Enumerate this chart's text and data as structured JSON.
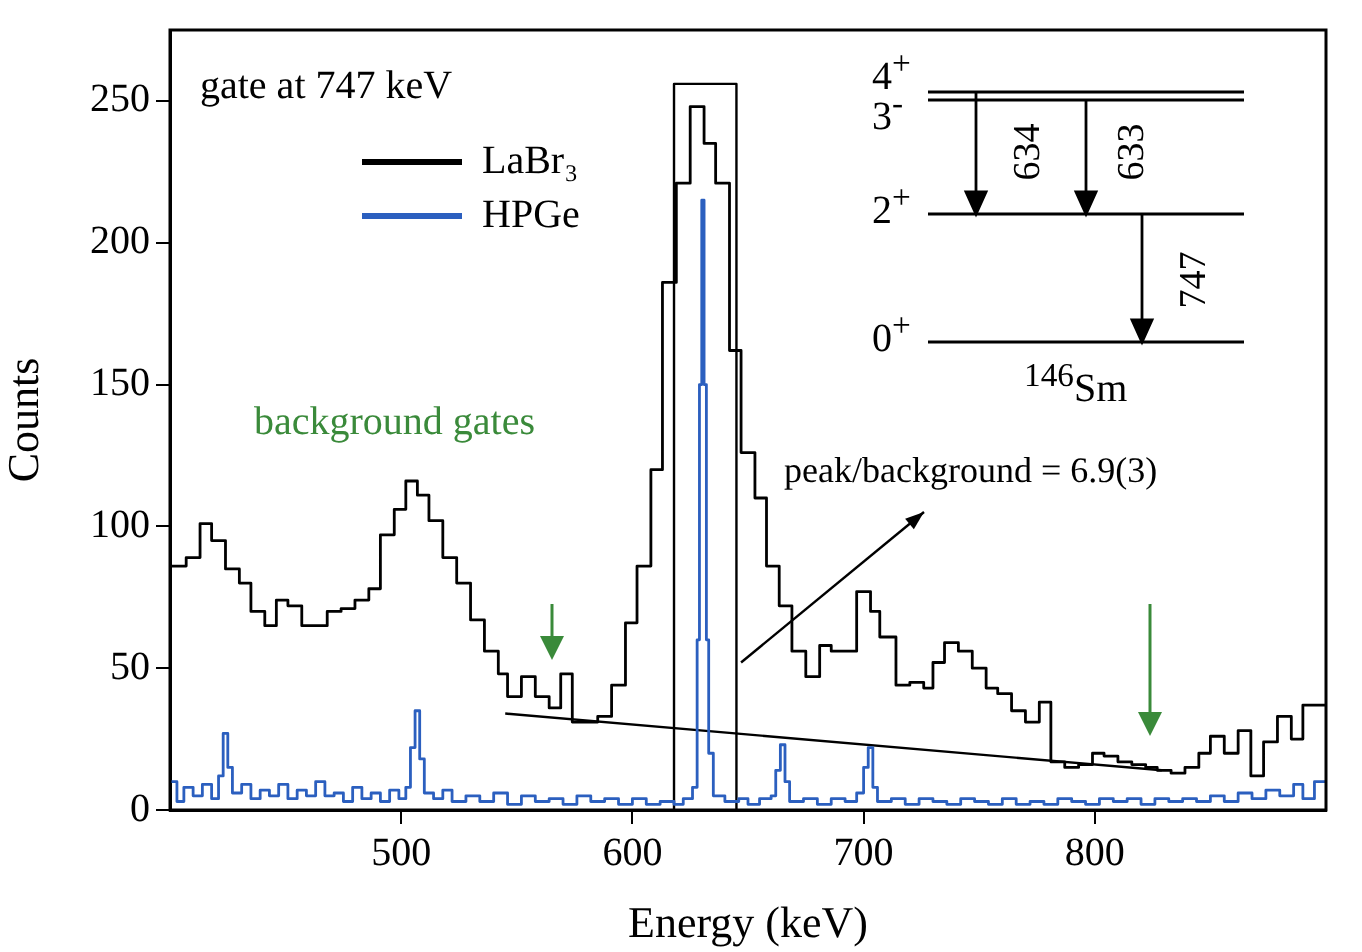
{
  "chart_data": {
    "type": "step",
    "xlabel": "Energy (keV)",
    "ylabel": "Counts",
    "xlim": [
      400,
      900
    ],
    "xticks": [
      500,
      600,
      700,
      800
    ],
    "ylim": [
      0,
      275
    ],
    "yticks": [
      0,
      50,
      100,
      150,
      200,
      250
    ],
    "legend": "top left",
    "grid": false,
    "annotations": [
      "gate at 747 keV",
      "background gates",
      {
        "text": "peak/background = 6.9(3)",
        "x": 647,
        "y": 52
      },
      "4$^{+}$",
      "3$^{-}$",
      "2$^{+}$",
      "0$^{+}$",
      "634",
      "633",
      "747",
      "$^{146}$Sm"
    ],
    "series": [
      {
        "name": "LaBr₃",
        "type": "step",
        "color": "#000000",
        "x": [
          400,
          407,
          413,
          418,
          424,
          430,
          435,
          441,
          446,
          451,
          457,
          468,
          474,
          480,
          486,
          491,
          497,
          502,
          507,
          512,
          518,
          524,
          530,
          536,
          542,
          546,
          552,
          558,
          564,
          569,
          574,
          585,
          591,
          597,
          602,
          608,
          613,
          619,
          625,
          631,
          636,
          642,
          647,
          653,
          658,
          663.5,
          669,
          675,
          681,
          686,
          697,
          703,
          707,
          714,
          720,
          726,
          730,
          735,
          741,
          747,
          753,
          758,
          764,
          770,
          776,
          781,
          787,
          793,
          799,
          804,
          810,
          816,
          822,
          827,
          833,
          839,
          845,
          850,
          856,
          862,
          867.5,
          873,
          879,
          885,
          890,
          900
        ],
        "values": [
          86,
          89,
          101,
          95,
          85,
          80,
          70,
          65,
          74,
          72,
          65,
          70,
          71,
          74,
          78,
          97,
          106,
          116,
          111,
          102,
          89,
          80,
          67,
          56,
          48,
          40,
          47,
          40,
          36,
          48,
          31,
          33,
          44,
          66,
          86,
          120,
          186,
          221,
          248,
          235,
          221,
          162,
          126,
          110,
          86,
          72,
          56,
          47,
          58,
          56,
          77,
          70,
          61,
          44,
          45,
          43,
          52,
          59,
          56,
          50,
          43,
          41,
          35,
          31,
          38,
          17,
          15,
          16,
          20,
          19,
          17,
          16,
          15,
          14,
          13,
          15,
          20,
          26,
          20,
          28,
          12,
          24,
          33,
          25,
          37,
          37
        ]
      },
      {
        "name": "HPGe",
        "type": "step",
        "color": "#2b5fbf",
        "x": [
          400,
          403,
          406,
          410,
          414,
          418,
          421,
          423,
          425,
          427,
          431,
          435,
          439,
          443,
          447,
          451,
          455,
          459,
          463,
          467,
          471,
          475,
          479,
          483,
          487,
          491,
          495,
          499,
          502,
          504,
          506,
          508,
          510,
          514,
          518,
          522,
          528,
          534,
          540,
          546,
          552,
          558,
          564,
          570,
          576,
          582,
          588,
          594,
          600,
          606,
          612,
          618,
          622,
          626,
          628,
          629,
          630,
          631,
          632,
          633,
          635,
          640,
          646,
          650,
          655,
          660,
          662,
          664,
          666,
          668,
          674,
          680,
          686,
          692,
          697,
          700,
          702,
          704,
          706,
          712,
          718,
          724,
          730,
          736,
          742,
          748,
          754,
          760,
          766,
          772,
          778,
          784,
          790,
          796,
          802,
          808,
          814,
          820,
          826,
          832,
          838,
          844,
          850,
          856,
          862,
          868,
          874,
          880,
          886,
          890,
          895,
          900
        ],
        "values": [
          10,
          3,
          8,
          5,
          9,
          4,
          12,
          27,
          15,
          6,
          9,
          4,
          7,
          5,
          9,
          4,
          7,
          5,
          10,
          5,
          6,
          3,
          8,
          4,
          6,
          3,
          7,
          4,
          8,
          22,
          35,
          18,
          6,
          4,
          7,
          3,
          5,
          3,
          6,
          2,
          5,
          3,
          4,
          2,
          5,
          3,
          4,
          2,
          4,
          2,
          3,
          2,
          4,
          8,
          60,
          150,
          215,
          150,
          60,
          20,
          5,
          3,
          4,
          2,
          4,
          5,
          14,
          23,
          10,
          3,
          4,
          2,
          4,
          3,
          6,
          15,
          22,
          8,
          3,
          4,
          2,
          4,
          3,
          2,
          4,
          3,
          2,
          4,
          2,
          3,
          2,
          4,
          3,
          2,
          4,
          3,
          4,
          2,
          4,
          3,
          4,
          3,
          5,
          3,
          6,
          4,
          7,
          5,
          9,
          4,
          10,
          10
        ]
      },
      {
        "type": "line",
        "color": "#000000",
        "x": [
          545,
          829
        ],
        "values": [
          34,
          14
        ]
      },
      {
        "type": "line",
        "color": "#000000",
        "x": [
          618,
          618,
          645,
          645
        ],
        "values": [
          0,
          256,
          256,
          0
        ]
      }
    ]
  }
}
